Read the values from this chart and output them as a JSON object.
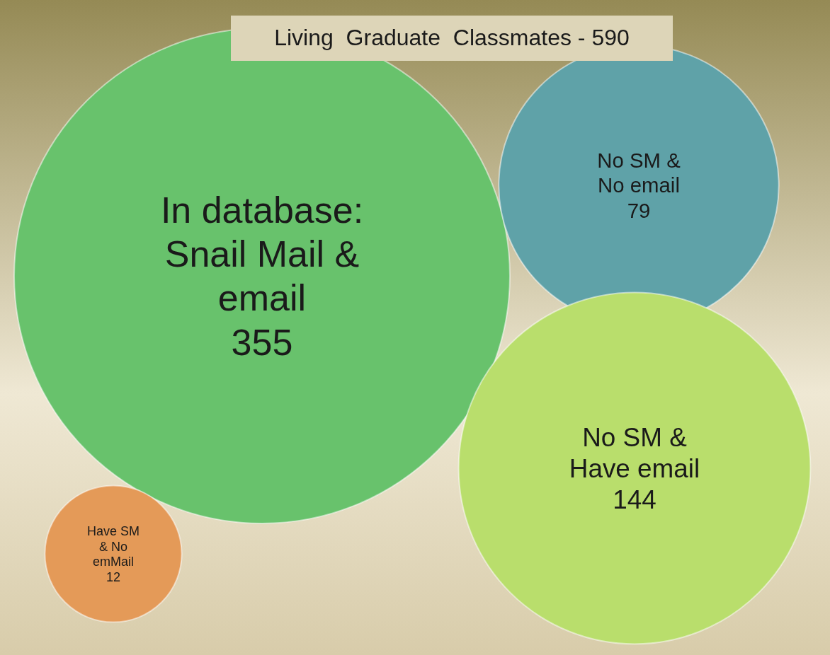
{
  "chart_data": {
    "type": "other",
    "title": "Living  Graduate  Classmates - 590",
    "categories": [
      "In database:\nSnail Mail &\nemail",
      "No SM &\nNo email",
      "No SM &\nHave email",
      "Have SM\n& No\nemMail"
    ],
    "values": [
      355,
      79,
      144,
      12
    ],
    "colors": [
      "#68c26c",
      "#5fa2a8",
      "#b9de6c",
      "#e49a58"
    ],
    "data_labels": true
  }
}
